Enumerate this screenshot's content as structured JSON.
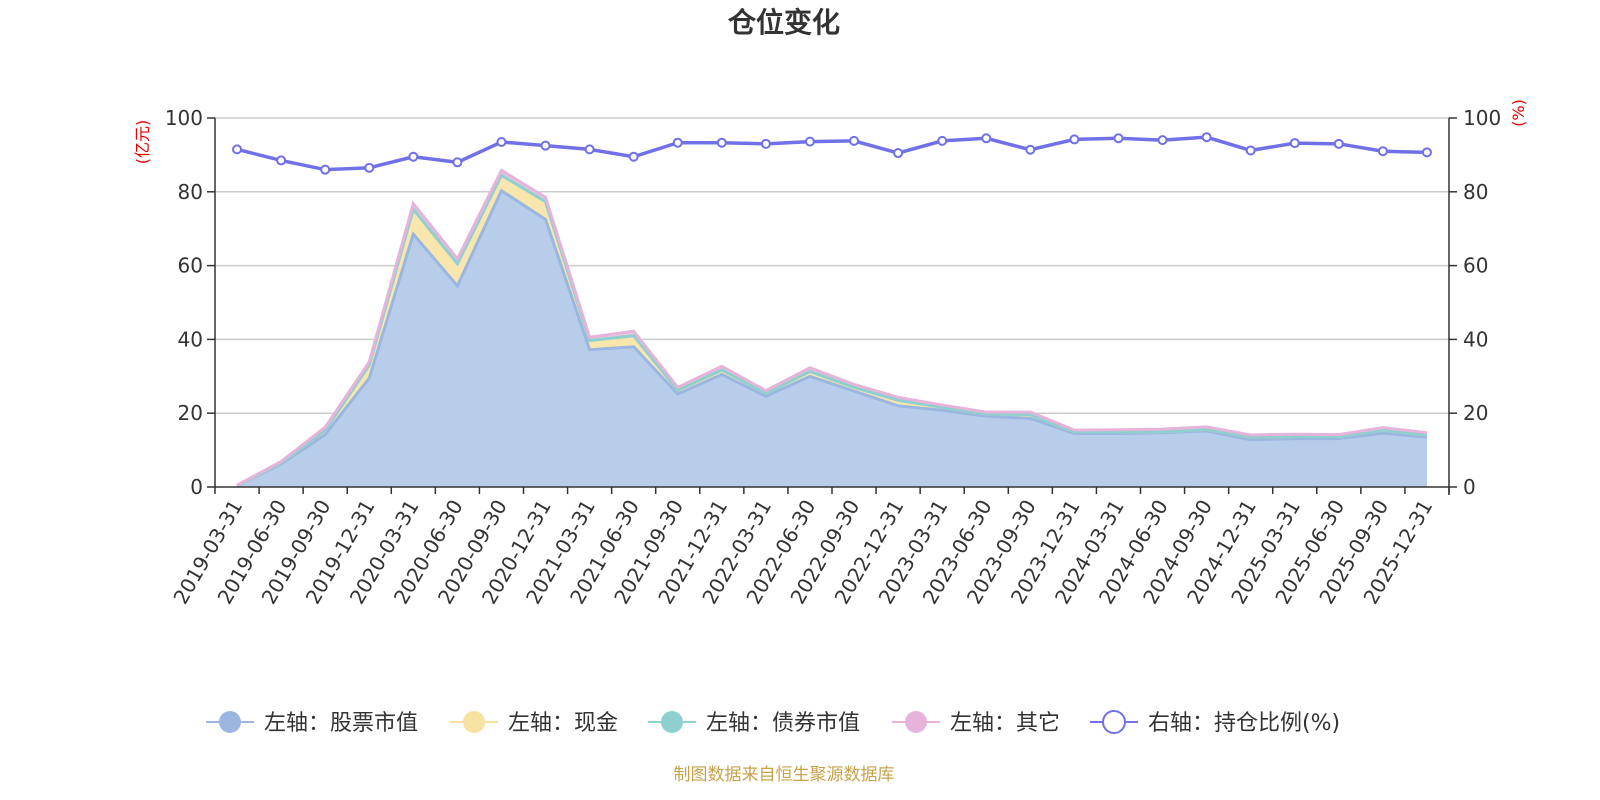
{
  "chart_data": {
    "type": "area",
    "title": "仓位变化",
    "left_unit": "(亿元)",
    "right_unit": "(%)",
    "left_ylim": [
      0,
      100
    ],
    "right_ylim": [
      0,
      100
    ],
    "left_ticks": [
      "0",
      "20",
      "40",
      "60",
      "80",
      "100"
    ],
    "right_ticks": [
      "0",
      "20",
      "40",
      "60",
      "80",
      "100"
    ],
    "grid": true,
    "legend_position": "bottom",
    "categories": [
      "2019-03-31",
      "2019-06-30",
      "2019-09-30",
      "2019-12-31",
      "2020-03-31",
      "2020-06-30",
      "2020-09-30",
      "2020-12-31",
      "2021-03-31",
      "2021-06-30",
      "2021-09-30",
      "2021-12-31",
      "2022-03-31",
      "2022-06-30",
      "2022-09-30",
      "2022-12-31",
      "2023-03-31",
      "2023-06-30",
      "2023-09-30",
      "2023-12-31",
      "2024-03-31",
      "2024-06-30",
      "2024-09-30",
      "2024-12-31",
      "2025-03-31",
      "2025-06-30",
      "2025-09-30",
      "2025-12-31"
    ],
    "series": [
      {
        "name": "左轴：股票市值",
        "axis": "left",
        "kind": "stack",
        "color": "#9bb7e0",
        "fill": "#b7cdea",
        "values": [
          0.3,
          6.2,
          14.2,
          29.5,
          68.5,
          54.5,
          80.3,
          72.5,
          37.2,
          38.0,
          25.2,
          30.5,
          24.6,
          30.0,
          26.0,
          22.0,
          20.8,
          19.2,
          18.6,
          14.5,
          14.5,
          14.7,
          15.2,
          12.8,
          13.1,
          13.1,
          14.6,
          13.5
        ]
      },
      {
        "name": "左轴：现金",
        "axis": "left",
        "kind": "stack",
        "color": "#f7e2a1",
        "fill": "#f9e6ad",
        "values": [
          0.0,
          0.3,
          1.2,
          3.5,
          6.8,
          6.0,
          4.2,
          4.8,
          2.5,
          3.0,
          1.0,
          1.2,
          0.8,
          1.3,
          1.0,
          1.5,
          0.8,
          0.6,
          1.0,
          0.4,
          0.4,
          0.3,
          0.4,
          0.7,
          0.6,
          0.6,
          0.8,
          0.6
        ]
      },
      {
        "name": "左轴：债券市值",
        "axis": "left",
        "kind": "stack",
        "color": "#8ed0d0",
        "fill": "#a7dcdc",
        "values": [
          0,
          0,
          0,
          0,
          0,
          0,
          0,
          0,
          0,
          0,
          0,
          0,
          0,
          0,
          0,
          0,
          0,
          0,
          0,
          0,
          0,
          0,
          0,
          0,
          0,
          0,
          0,
          0
        ]
      },
      {
        "name": "左轴：其它",
        "axis": "left",
        "kind": "stack",
        "color": "#e6b3da",
        "fill": "#efc6e5",
        "values": [
          0.2,
          0.4,
          0.8,
          0.9,
          1.5,
          1.3,
          1.3,
          1.2,
          0.9,
          1.2,
          0.8,
          1.0,
          0.7,
          1.0,
          0.8,
          0.8,
          0.6,
          0.5,
          0.7,
          0.5,
          0.6,
          0.7,
          0.7,
          0.6,
          0.6,
          0.5,
          0.7,
          0.6
        ]
      },
      {
        "name": "右轴：持仓比例(%)",
        "axis": "right",
        "kind": "line",
        "color": "#7070e8",
        "values": [
          91.5,
          88.5,
          86.0,
          86.5,
          89.5,
          88.0,
          93.5,
          92.5,
          91.5,
          89.5,
          93.3,
          93.3,
          93.0,
          93.6,
          93.8,
          90.5,
          93.8,
          94.5,
          91.4,
          94.2,
          94.5,
          94.0,
          94.8,
          91.2,
          93.2,
          93.0,
          91.0,
          90.7
        ]
      }
    ]
  },
  "footer": "制图数据来自恒生聚源数据库"
}
